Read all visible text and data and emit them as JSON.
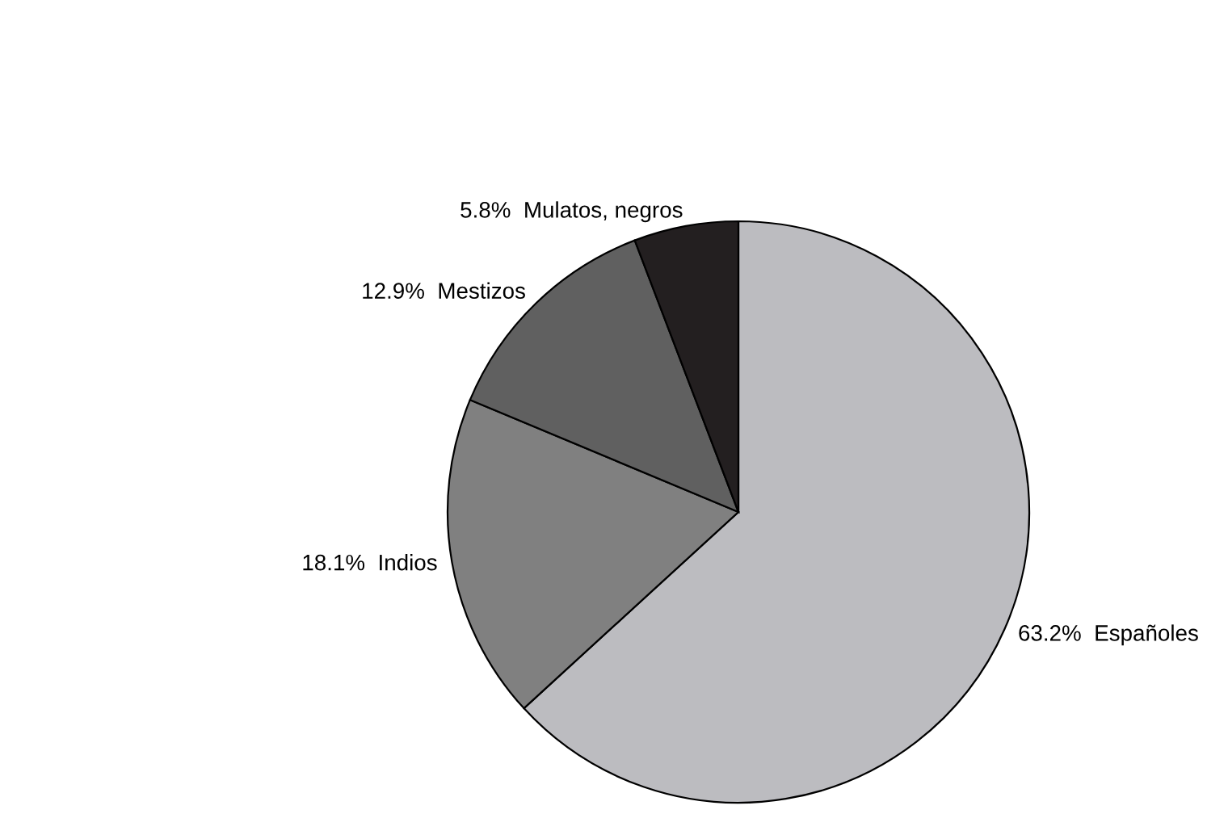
{
  "chart_data": {
    "type": "pie",
    "categories": [
      "Españoles",
      "Indios",
      "Mestizos",
      "Mulatos, negros"
    ],
    "values": [
      63.2,
      18.1,
      12.9,
      5.8
    ],
    "value_labels": [
      "63.2%",
      "18.1%",
      "12.9%",
      "5.8%"
    ],
    "colors": [
      "#bcbcc0",
      "#808080",
      "#606060",
      "#231f20"
    ],
    "legend": false
  }
}
